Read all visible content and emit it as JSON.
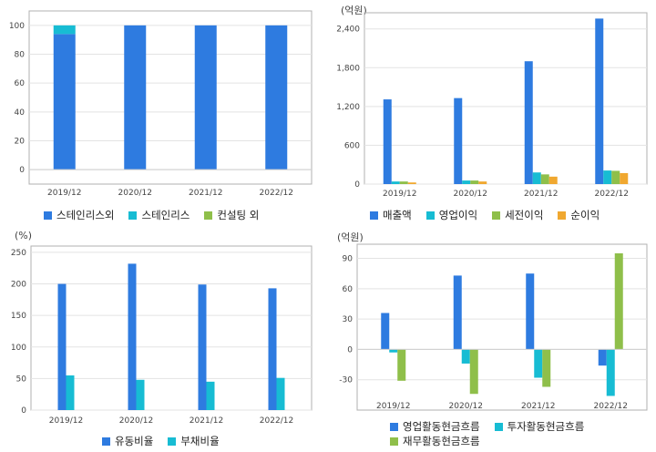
{
  "chart_data": [
    {
      "id": "p1",
      "type": "bar",
      "stacked": true,
      "categories": [
        "2019/12",
        "2020/12",
        "2021/12",
        "2022/12"
      ],
      "series": [
        {
          "name": "스테인리스외",
          "values": [
            94,
            100,
            100,
            100
          ],
          "color": "#2e7be0"
        },
        {
          "name": "스테인리스",
          "values": [
            6,
            0,
            0,
            0
          ],
          "color": "#17bcd3"
        },
        {
          "name": "컨설팅 외",
          "values": [
            0,
            0,
            0,
            0
          ],
          "color": "#8fbf4a"
        }
      ],
      "ylim": [
        -10,
        110
      ],
      "yticks": [
        0,
        20,
        40,
        60,
        80,
        100
      ],
      "ytick_labels": [
        "0",
        "20",
        "40",
        "60",
        "80",
        "100"
      ],
      "unit": ""
    },
    {
      "id": "p2",
      "type": "bar",
      "categories": [
        "2019/12",
        "2020/12",
        "2021/12",
        "2022/12"
      ],
      "series": [
        {
          "name": "매출액",
          "values": [
            1310,
            1330,
            1900,
            2560
          ],
          "color": "#2e7be0"
        },
        {
          "name": "영업이익",
          "values": [
            40,
            55,
            180,
            210
          ],
          "color": "#17bcd3"
        },
        {
          "name": "세전이익",
          "values": [
            40,
            55,
            150,
            205
          ],
          "color": "#8fbf4a"
        },
        {
          "name": "순이익",
          "values": [
            25,
            40,
            115,
            170
          ],
          "color": "#f0a830"
        }
      ],
      "ylim": [
        0,
        2650
      ],
      "yticks": [
        0,
        600,
        1200,
        1800,
        2400
      ],
      "ytick_labels": [
        "0",
        "600",
        "1,200",
        "1,800",
        "2,400"
      ],
      "unit": "(억원)"
    },
    {
      "id": "p3",
      "type": "bar",
      "categories": [
        "2019/12",
        "2020/12",
        "2021/12",
        "2022/12"
      ],
      "series": [
        {
          "name": "유동비율",
          "values": [
            200,
            232,
            199,
            193
          ],
          "color": "#2e7be0"
        },
        {
          "name": "부채비율",
          "values": [
            55,
            48,
            45,
            51
          ],
          "color": "#17bcd3"
        }
      ],
      "ylim": [
        0,
        260
      ],
      "yticks": [
        0,
        50,
        100,
        150,
        200,
        250
      ],
      "ytick_labels": [
        "0",
        "50",
        "100",
        "150",
        "200",
        "250"
      ],
      "unit": "(%)"
    },
    {
      "id": "p4",
      "type": "bar",
      "categories": [
        "2019/12",
        "2020/12",
        "2021/12",
        "2022/12"
      ],
      "series": [
        {
          "name": "영업활동현금흐름",
          "values": [
            36,
            73,
            75,
            -16
          ],
          "color": "#2e7be0"
        },
        {
          "name": "투자활동현금흐름",
          "values": [
            -3,
            -14,
            -28,
            -46
          ],
          "color": "#17bcd3"
        },
        {
          "name": "재무활동현금흐름",
          "values": [
            -31,
            -44,
            -37,
            95
          ],
          "color": "#8fbf4a"
        }
      ],
      "ylim": [
        -60,
        104
      ],
      "yticks": [
        -30,
        0,
        30,
        60,
        90
      ],
      "ytick_labels": [
        "-30",
        "0",
        "30",
        "60",
        "90"
      ],
      "unit": "(억원)"
    }
  ]
}
